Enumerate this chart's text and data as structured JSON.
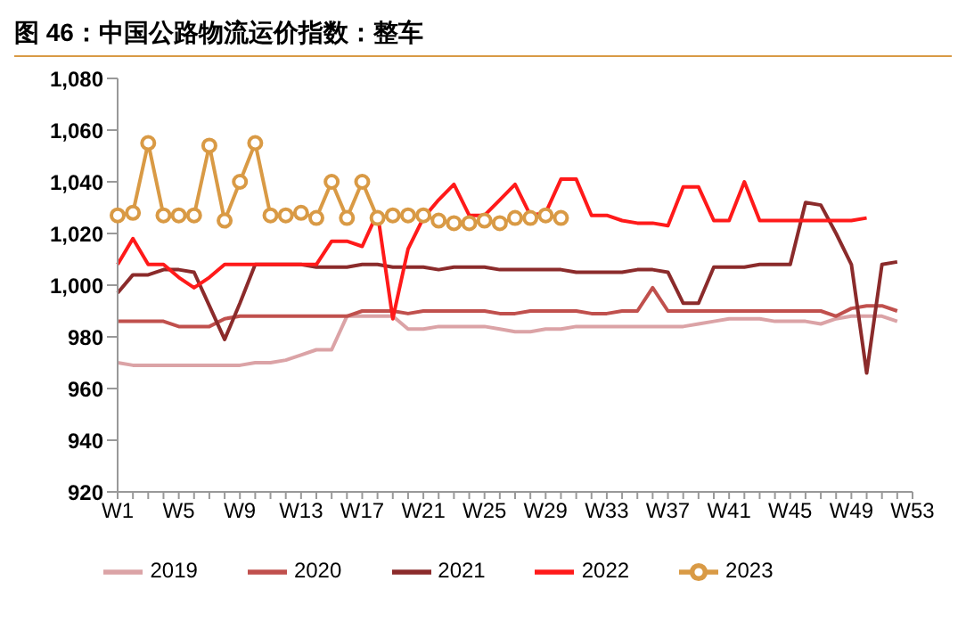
{
  "chart_data": {
    "type": "line",
    "title": "图 46：中国公路物流运价指数：整车",
    "categories": [
      "W1",
      null,
      null,
      null,
      "W5",
      null,
      null,
      null,
      "W9",
      null,
      null,
      null,
      "W13",
      null,
      null,
      null,
      "W17",
      null,
      null,
      null,
      "W21",
      null,
      null,
      null,
      "W25",
      null,
      null,
      null,
      "W29",
      null,
      null,
      null,
      "W33",
      null,
      null,
      null,
      "W37",
      null,
      null,
      null,
      "W41",
      null,
      null,
      null,
      "W45",
      null,
      null,
      null,
      "W49",
      null,
      null,
      null,
      "W53"
    ],
    "series": [
      {
        "name": "2019",
        "color": "#dba3a6",
        "marker": "none",
        "values": [
          970,
          969,
          969,
          969,
          969,
          969,
          969,
          969,
          969,
          970,
          970,
          971,
          973,
          975,
          975,
          988,
          988,
          988,
          988,
          983,
          983,
          984,
          984,
          984,
          984,
          983,
          982,
          982,
          983,
          983,
          984,
          984,
          984,
          984,
          984,
          984,
          984,
          984,
          985,
          986,
          987,
          987,
          987,
          986,
          986,
          986,
          985,
          987,
          988,
          988,
          988,
          986,
          null
        ]
      },
      {
        "name": "2020",
        "color": "#c0504d",
        "marker": "none",
        "values": [
          986,
          986,
          986,
          986,
          984,
          984,
          984,
          987,
          988,
          988,
          988,
          988,
          988,
          988,
          988,
          988,
          990,
          990,
          990,
          989,
          990,
          990,
          990,
          990,
          990,
          989,
          989,
          990,
          990,
          990,
          990,
          989,
          989,
          990,
          990,
          999,
          990,
          990,
          990,
          990,
          990,
          990,
          990,
          990,
          990,
          990,
          990,
          988,
          991,
          992,
          992,
          990,
          null
        ]
      },
      {
        "name": "2021",
        "color": "#8b2b2b",
        "marker": "none",
        "values": [
          997,
          1004,
          1004,
          1006,
          1006,
          1005,
          992,
          979,
          993,
          1008,
          1008,
          1008,
          1008,
          1007,
          1007,
          1007,
          1008,
          1008,
          1007,
          1007,
          1007,
          1006,
          1007,
          1007,
          1007,
          1006,
          1006,
          1006,
          1006,
          1006,
          1005,
          1005,
          1005,
          1005,
          1006,
          1006,
          1005,
          993,
          993,
          1007,
          1007,
          1007,
          1008,
          1008,
          1008,
          1032,
          1031,
          1020,
          1008,
          966,
          1008,
          1009,
          null
        ]
      },
      {
        "name": "2022",
        "color": "#ff1a1a",
        "marker": "none",
        "values": [
          1008,
          1018,
          1008,
          1008,
          1003,
          999,
          1003,
          1008,
          1008,
          1008,
          1008,
          1008,
          1008,
          1008,
          1017,
          1017,
          1015,
          1028,
          987,
          1014,
          1026,
          1033,
          1039,
          1027,
          1027,
          1033,
          1039,
          1027,
          1028,
          1041,
          1041,
          1027,
          1027,
          1025,
          1024,
          1024,
          1023,
          1038,
          1038,
          1025,
          1025,
          1040,
          1025,
          1025,
          1025,
          1025,
          1025,
          1025,
          1025,
          1026,
          null,
          null,
          null
        ]
      },
      {
        "name": "2023",
        "color": "#d99a45",
        "marker": "circle",
        "values": [
          1027,
          1028,
          1055,
          1027,
          1027,
          1027,
          1054,
          1025,
          1040,
          1055,
          1027,
          1027,
          1028,
          1026,
          1040,
          1026,
          1040,
          1026,
          1027,
          1027,
          1027,
          1025,
          1024,
          1024,
          1025,
          1024,
          1026,
          1026,
          1027,
          1026,
          null,
          null,
          null,
          null,
          null,
          null,
          null,
          null,
          null,
          null,
          null,
          null,
          null,
          null,
          null,
          null,
          null,
          null,
          null,
          null,
          null,
          null,
          null
        ]
      }
    ],
    "ylim": [
      920,
      1080
    ],
    "yticks": [
      920,
      940,
      960,
      980,
      {
        "value": 1000,
        "label": "1,000"
      },
      {
        "value": 1020,
        "label": "1,020"
      },
      {
        "value": 1040,
        "label": "1,040"
      },
      {
        "value": 1060,
        "label": "1,060"
      },
      {
        "value": 1080,
        "label": "1,080"
      }
    ],
    "grid": false,
    "legend": "bottom"
  }
}
